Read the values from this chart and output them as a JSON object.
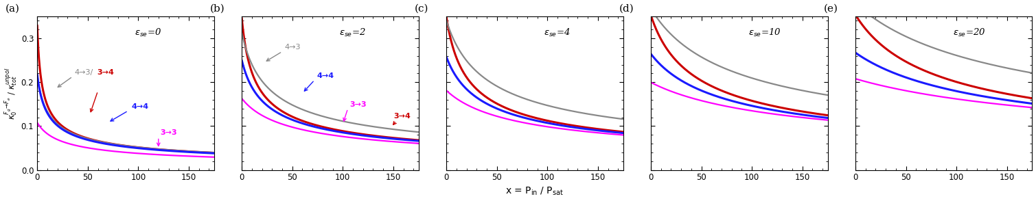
{
  "panels": [
    {
      "label": "(a)",
      "eps_se": 0
    },
    {
      "label": "(b)",
      "eps_se": 2
    },
    {
      "label": "(c)",
      "eps_se": 4
    },
    {
      "label": "(d)",
      "eps_se": 10
    },
    {
      "label": "(e)",
      "eps_se": 20
    }
  ],
  "transitions": [
    {
      "name": "3->4",
      "color": "#cc0000",
      "lw": 2.2,
      "Fg": 3,
      "Fe": 4
    },
    {
      "name": "4->3",
      "color": "#888888",
      "lw": 1.6,
      "Fg": 4,
      "Fe": 3
    },
    {
      "name": "4->4",
      "color": "#1a1aff",
      "lw": 2.2,
      "Fg": 4,
      "Fe": 4
    },
    {
      "name": "3->3",
      "color": "#ff00ff",
      "lw": 1.6,
      "Fg": 3,
      "Fe": 3
    }
  ],
  "x_max": 175,
  "ylim": [
    0,
    0.35
  ],
  "yticks": [
    0.0,
    0.1,
    0.2,
    0.3
  ],
  "xticks": [
    0,
    50,
    100,
    150
  ],
  "figsize": [
    15.09,
    2.94
  ],
  "dpi": 100
}
